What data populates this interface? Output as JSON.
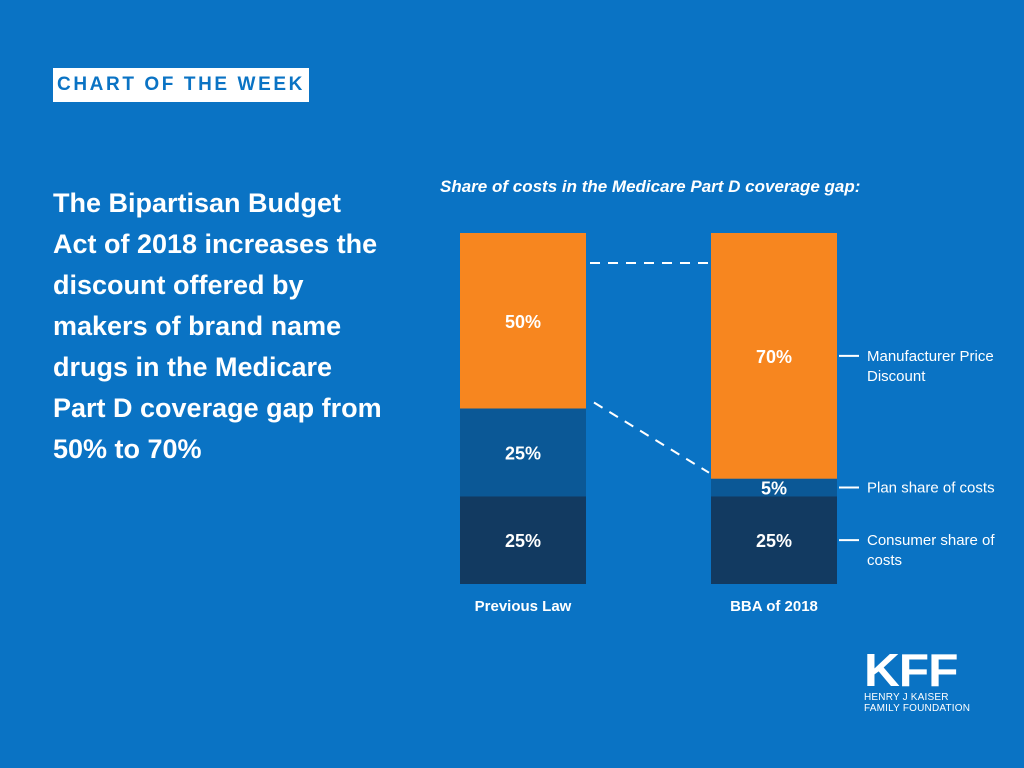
{
  "badge": "CHART OF THE WEEK",
  "headline": "The Bipartisan Budget Act of 2018 increases the discount offered by makers of brand name drugs in the Medicare Part D coverage gap from 50% to 70%",
  "colors": {
    "background": "#0a73c4",
    "manufacturer": "#f7861f",
    "plan": "#0b5896",
    "consumer": "#123a61",
    "text": "#ffffff"
  },
  "chart_data": {
    "type": "bar",
    "stacked": true,
    "title": "Share of costs in the Medicare Part D coverage gap:",
    "categories": [
      "Previous Law",
      "BBA of 2018"
    ],
    "series": [
      {
        "name": "Consumer share of costs",
        "values": [
          25,
          25
        ],
        "labels": [
          "25%",
          "25%"
        ]
      },
      {
        "name": "Plan share of costs",
        "values": [
          25,
          5
        ],
        "labels": [
          "25%",
          "5%"
        ]
      },
      {
        "name": "Manufacturer Price Discount",
        "values": [
          50,
          70
        ],
        "labels": [
          "50%",
          "70%"
        ]
      }
    ],
    "ylim": [
      0,
      100
    ],
    "xlabel": "",
    "ylabel": "",
    "legend_position": "right"
  },
  "logo": {
    "mark": "KFF",
    "line1": "HENRY J KAISER",
    "line2": "FAMILY FOUNDATION"
  }
}
